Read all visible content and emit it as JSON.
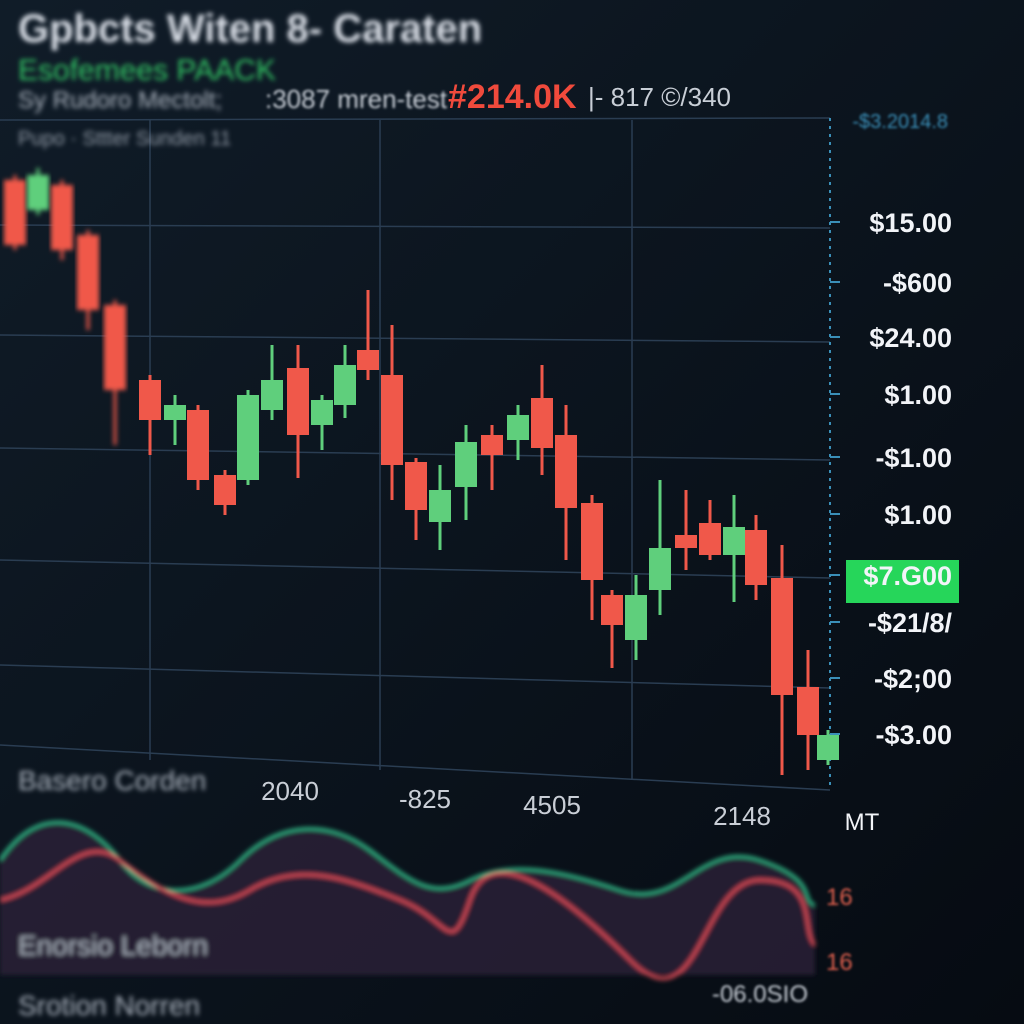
{
  "header": {
    "title": "Gpbcts Witen 8- Caraten",
    "subtitle": "Esofemees PAACK",
    "info": [
      "Sy Rudoro Mectolt;",
      ":3087 mren-test",
      "#214.0K",
      "|- 817 ©/340"
    ],
    "tabs": "Pupo · Sttter Sunden 11"
  },
  "price_axis": {
    "top": "-$3.2014.8",
    "labels": [
      "$15.00",
      "-$600",
      "$24.00",
      "$1.00",
      "-$1.00",
      "$1.00",
      "$7.G00",
      "-$21/8/",
      "-$2;00",
      "-$3.00"
    ]
  },
  "time_axis": {
    "labels": [
      "2040",
      "-825",
      "4505",
      "2148"
    ],
    "unit": "MT"
  },
  "panels": [
    "Basero Corden",
    "Enorsio Leborn",
    "Srotion Norren"
  ],
  "indicator": {
    "labels": [
      "16",
      "16"
    ],
    "value": "-06.0SIO"
  }
}
